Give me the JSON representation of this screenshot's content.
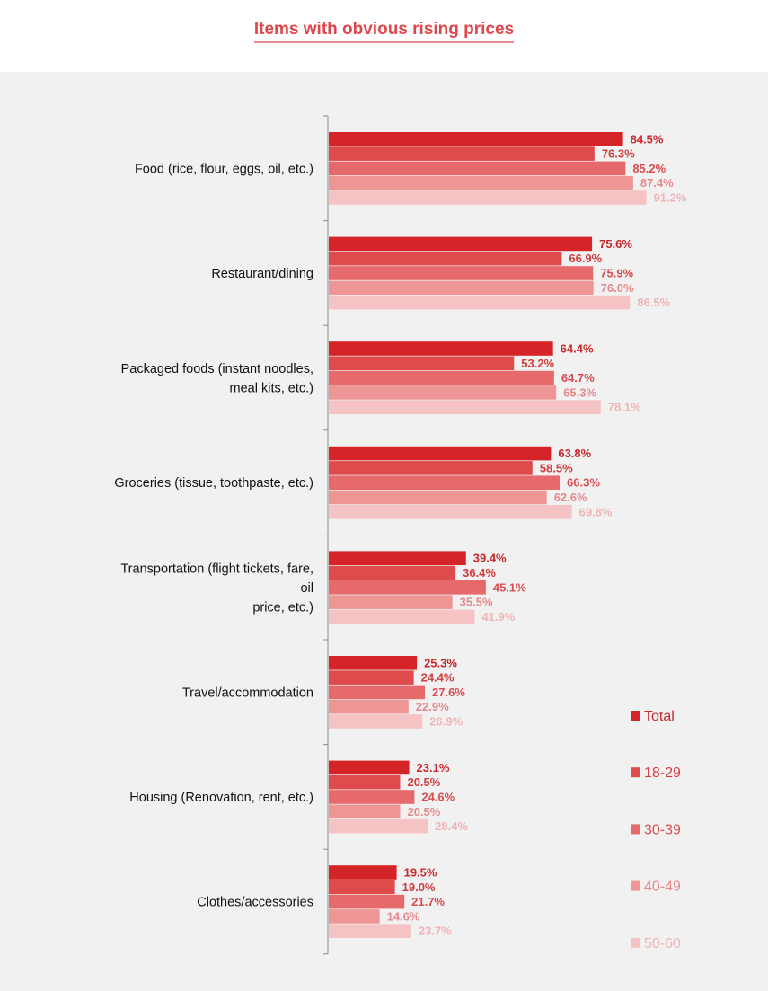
{
  "chart_data": {
    "type": "bar",
    "orientation": "horizontal",
    "title": "Items with obvious rising prices",
    "categories": [
      [
        "Food (rice, flour, eggs, oil, etc.)"
      ],
      [
        "Restaurant/dining"
      ],
      [
        "Packaged foods (instant noodles,",
        "meal kits, etc.)"
      ],
      [
        "Groceries (tissue, toothpaste, etc.)"
      ],
      [
        "Transportation (flight tickets, fare,",
        "oil",
        "price, etc.)"
      ],
      [
        "Travel/accommodation"
      ],
      [
        "Housing (Renovation, rent, etc.)"
      ],
      [
        "Clothes/accessories"
      ]
    ],
    "value_format": "percent_one_decimal",
    "xlim": [
      0,
      100
    ],
    "series": [
      {
        "name": "Total",
        "color": "#d42427",
        "label_color": "#c8282b",
        "values": [
          84.5,
          75.6,
          64.4,
          63.8,
          39.4,
          25.3,
          23.1,
          19.5
        ]
      },
      {
        "name": "18-29",
        "color": "#df4a4c",
        "label_color": "#d23c3f",
        "values": [
          76.3,
          66.9,
          53.2,
          58.5,
          36.4,
          24.4,
          20.5,
          19.0
        ]
      },
      {
        "name": "30-39",
        "color": "#e66a6b",
        "label_color": "#d84d50",
        "values": [
          85.2,
          75.9,
          64.7,
          66.3,
          45.1,
          27.6,
          24.6,
          21.7
        ]
      },
      {
        "name": "40-49",
        "color": "#ee9596",
        "label_color": "#e58a8c",
        "values": [
          87.4,
          76.0,
          65.3,
          62.6,
          35.5,
          22.9,
          20.5,
          14.6
        ]
      },
      {
        "name": "50-60",
        "color": "#f5c3c3",
        "label_color": "#f0b4b5",
        "values": [
          91.2,
          86.5,
          78.1,
          69.8,
          41.9,
          26.9,
          28.4,
          23.7
        ]
      }
    ],
    "legend": {
      "placement": "right"
    },
    "grid": false
  }
}
